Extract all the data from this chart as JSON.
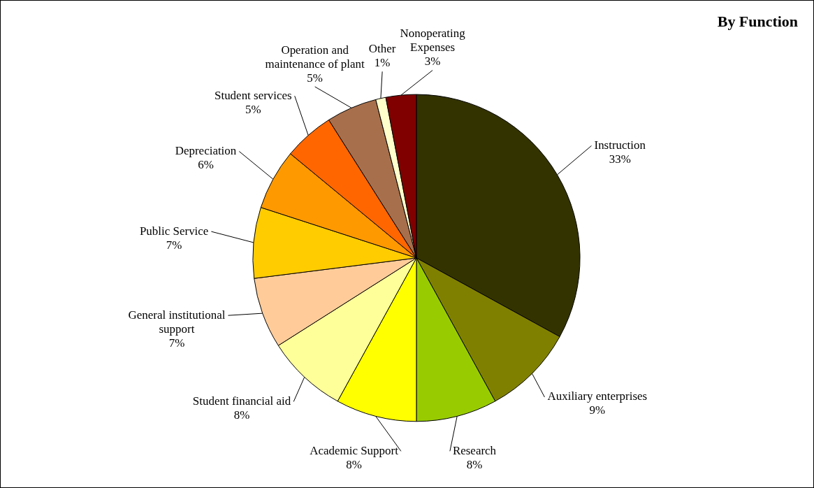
{
  "chart_data": {
    "type": "pie",
    "title": "By Function",
    "categories": [
      "Instruction",
      "Auxiliary enterprises",
      "Research",
      "Academic Support",
      "Student financial aid",
      "General institutional support",
      "Public Service",
      "Depreciation",
      "Student services",
      "Operation and maintenance of plant",
      "Other",
      "Nonoperating Expenses"
    ],
    "values": [
      33,
      9,
      8,
      8,
      8,
      7,
      7,
      6,
      5,
      5,
      1,
      3
    ],
    "value_labels": [
      "33%",
      "9%",
      "8%",
      "8%",
      "8%",
      "7%",
      "7%",
      "6%",
      "5%",
      "5%",
      "1%",
      "3%"
    ],
    "colors": [
      "#333300",
      "#808000",
      "#99cc00",
      "#ffff00",
      "#ffff99",
      "#ffcc99",
      "#ffcc00",
      "#ff9900",
      "#ff6600",
      "#a86f4c",
      "#ffffcc",
      "#800000"
    ],
    "legend": false
  }
}
